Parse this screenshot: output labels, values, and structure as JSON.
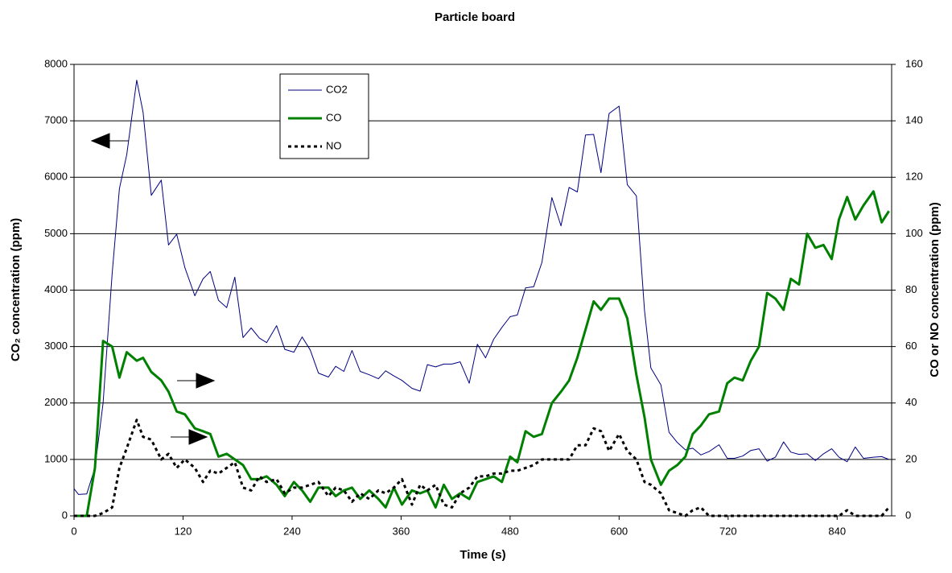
{
  "chart_data": {
    "type": "line",
    "title": "Particle board",
    "x_label": "Time (s)",
    "y_label": "CO₂ concentration (ppm)",
    "y2_label": "CO or NO concentration (ppm)",
    "x": [
      0,
      5,
      14,
      23,
      32,
      42,
      50,
      58,
      69,
      76,
      85,
      96,
      104,
      113,
      122,
      133,
      142,
      150,
      159,
      168,
      177,
      186,
      195,
      204,
      212,
      223,
      232,
      242,
      251,
      260,
      269,
      280,
      288,
      297,
      306,
      315,
      325,
      335,
      343,
      352,
      361,
      372,
      381,
      389,
      398,
      407,
      416,
      425,
      435,
      444,
      453,
      462,
      471,
      480,
      488,
      497,
      506,
      515,
      526,
      536,
      545,
      554,
      563,
      572,
      580,
      589,
      600,
      609,
      619,
      628,
      635,
      646,
      655,
      664,
      673,
      681,
      690,
      699,
      710,
      719,
      727,
      736,
      745,
      754,
      763,
      772,
      781,
      789,
      798,
      807,
      816,
      825,
      834,
      842,
      851,
      860,
      869,
      880,
      889,
      897
    ],
    "xlim": [
      0,
      900
    ],
    "xticks": [
      0,
      120,
      240,
      360,
      480,
      600,
      720,
      840
    ],
    "ylim": [
      0,
      8000
    ],
    "yticks": [
      0,
      1000,
      2000,
      3000,
      4000,
      5000,
      6000,
      7000,
      8000
    ],
    "y2lim": [
      0,
      160
    ],
    "y2ticks": [
      0,
      20,
      40,
      60,
      80,
      100,
      120,
      140,
      160
    ],
    "grid": true,
    "series": [
      {
        "name": "CO2",
        "color": "#000080",
        "width": 1,
        "linestyle": "solid",
        "values": [
          480,
          380,
          390,
          850,
          2000,
          4300,
          5800,
          6400,
          7720,
          7150,
          5680,
          5950,
          4800,
          4990,
          4400,
          3900,
          4200,
          4330,
          3820,
          3690,
          4230,
          3160,
          3330,
          3150,
          3070,
          3370,
          2950,
          2900,
          3170,
          2940,
          2530,
          2460,
          2650,
          2560,
          2930,
          2560,
          2500,
          2430,
          2570,
          2480,
          2400,
          2260,
          2210,
          2680,
          2640,
          2690,
          2690,
          2730,
          2350,
          3040,
          2800,
          3130,
          3340,
          3530,
          3560,
          4040,
          4060,
          4490,
          5640,
          5140,
          5820,
          5740,
          6750,
          6760,
          6080,
          7130,
          7260,
          5870,
          5670,
          3640,
          2620,
          2320,
          1480,
          1300,
          1170,
          1200,
          1080,
          1140,
          1260,
          1020,
          1020,
          1060,
          1160,
          1190,
          970,
          1040,
          1310,
          1130,
          1090,
          1100,
          980,
          1100,
          1190,
          1040,
          960,
          1220,
          1020,
          1040,
          1050,
          1000
        ]
      },
      {
        "name": "CO",
        "color": "#008000",
        "width": 3,
        "linestyle": "solid",
        "axis": "y2",
        "values": [
          0,
          0,
          0,
          17,
          62,
          60,
          49,
          58,
          55,
          56,
          51,
          48,
          44,
          37,
          36,
          31,
          30,
          29,
          21,
          22,
          20,
          18,
          13,
          13,
          14,
          11,
          7,
          12,
          9,
          5,
          10,
          10,
          7,
          9,
          10,
          6,
          9,
          6,
          3,
          10,
          4,
          9,
          8,
          9,
          3,
          11,
          6,
          8,
          6,
          12,
          13,
          14,
          12,
          21,
          19,
          30,
          28,
          29,
          40,
          44,
          48,
          56,
          66,
          76,
          73,
          77,
          77,
          70,
          50,
          35,
          20,
          11,
          16,
          18,
          21,
          29,
          32,
          36,
          37,
          47,
          49,
          48,
          55,
          60,
          79,
          77,
          73,
          84,
          82,
          100,
          95,
          96,
          91,
          105,
          113,
          105,
          110,
          115,
          104,
          108
        ]
      },
      {
        "name": "NO",
        "color": "#000000",
        "width": 3,
        "linestyle": "dashed",
        "axis": "y2",
        "values": [
          0,
          0,
          0,
          0,
          1,
          3,
          17,
          24,
          34,
          28,
          27,
          20,
          22,
          17,
          20,
          17,
          12,
          16,
          15,
          17,
          19,
          10,
          9,
          14,
          12,
          13,
          8,
          10,
          10,
          11,
          12,
          7,
          10,
          9,
          5,
          8,
          6,
          9,
          8,
          10,
          13,
          4,
          11,
          9,
          11,
          4,
          3,
          8,
          10,
          14,
          14,
          15,
          15,
          16,
          16,
          17,
          18,
          20,
          20,
          20,
          20,
          25,
          25,
          31,
          30,
          23,
          29,
          23,
          20,
          12,
          11,
          8,
          2,
          1,
          0,
          2,
          3,
          0,
          0,
          0,
          0,
          0,
          0,
          0,
          0,
          0,
          0,
          0,
          0,
          0,
          0,
          0,
          0,
          0,
          2,
          0,
          0,
          0,
          0,
          3
        ]
      }
    ]
  }
}
